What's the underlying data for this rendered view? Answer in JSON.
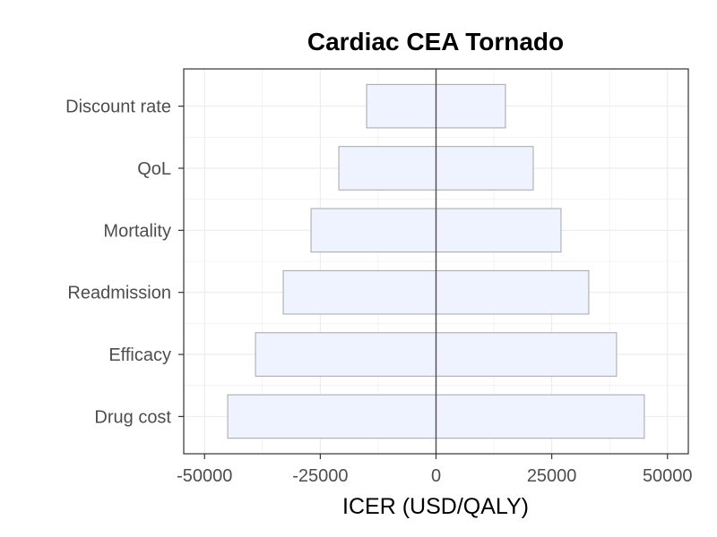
{
  "chart_data": {
    "type": "bar",
    "orientation": "horizontal",
    "title": "Cardiac CEA Tornado",
    "xlabel": "ICER (USD/QALY)",
    "ylabel": "",
    "categories": [
      "Discount rate",
      "QoL",
      "Mortality",
      "Readmission",
      "Efficacy",
      "Drug cost"
    ],
    "low": [
      -15000,
      -21000,
      -27000,
      -33000,
      -39000,
      -45000
    ],
    "high": [
      15000,
      21000,
      27000,
      33000,
      39000,
      45000
    ],
    "xlim": [
      -54500,
      54500
    ],
    "xticks": [
      -50000,
      -25000,
      0,
      25000,
      50000
    ],
    "xtick_labels": [
      "-50000",
      "-25000",
      "0",
      "25000",
      "50000"
    ],
    "reference_line": 0,
    "grid": true,
    "legend": "none",
    "colors": {
      "bar_fill": "#eef3ff",
      "bar_stroke": "#a6a6a6",
      "grid": "#ebebeb",
      "reference_line": "#4d4d4d",
      "panel_border": "#333333"
    }
  }
}
